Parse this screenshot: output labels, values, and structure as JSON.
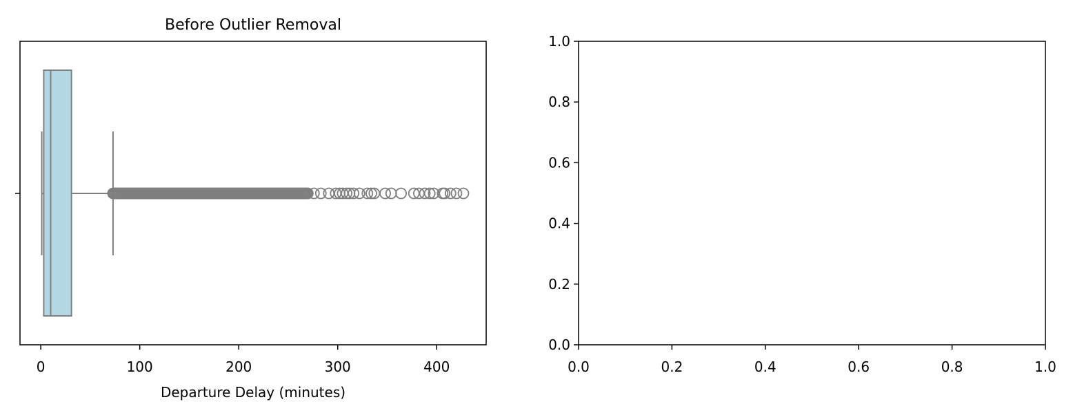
{
  "chart_data": [
    {
      "type": "box",
      "title": "Before Outlier Removal",
      "xlabel": "Departure Delay (minutes)",
      "ylabel": "",
      "xlim": [
        -21,
        450
      ],
      "xticks": [
        0,
        100,
        200,
        300,
        400
      ],
      "xtick_labels": [
        "0",
        "100",
        "200",
        "300",
        "400"
      ],
      "grid": false,
      "orientation": "horizontal",
      "box": {
        "whisker_low": 1,
        "q1": 3,
        "median": 10,
        "q3": 31,
        "whisker_high": 73,
        "fill_color": "#b3d8e3",
        "line_color": "#7f7f7f"
      },
      "outliers_dense_range": [
        73,
        270
      ],
      "outliers": [
        276,
        283,
        291,
        298,
        302,
        305,
        309,
        312,
        316,
        322,
        330,
        334,
        337,
        348,
        354,
        364,
        377,
        382,
        388,
        393,
        397,
        406,
        408,
        414,
        420,
        427
      ]
    },
    {
      "type": "empty",
      "title": "",
      "xlabel": "",
      "ylabel": "",
      "xlim": [
        0,
        1
      ],
      "ylim": [
        0,
        1
      ],
      "xticks": [
        0.0,
        0.2,
        0.4,
        0.6,
        0.8,
        1.0
      ],
      "xtick_labels": [
        "0.0",
        "0.2",
        "0.4",
        "0.6",
        "0.8",
        "1.0"
      ],
      "yticks": [
        0.0,
        0.2,
        0.4,
        0.6,
        0.8,
        1.0
      ],
      "ytick_labels": [
        "0.0",
        "0.2",
        "0.4",
        "0.6",
        "0.8",
        "1.0"
      ],
      "grid": false
    }
  ]
}
